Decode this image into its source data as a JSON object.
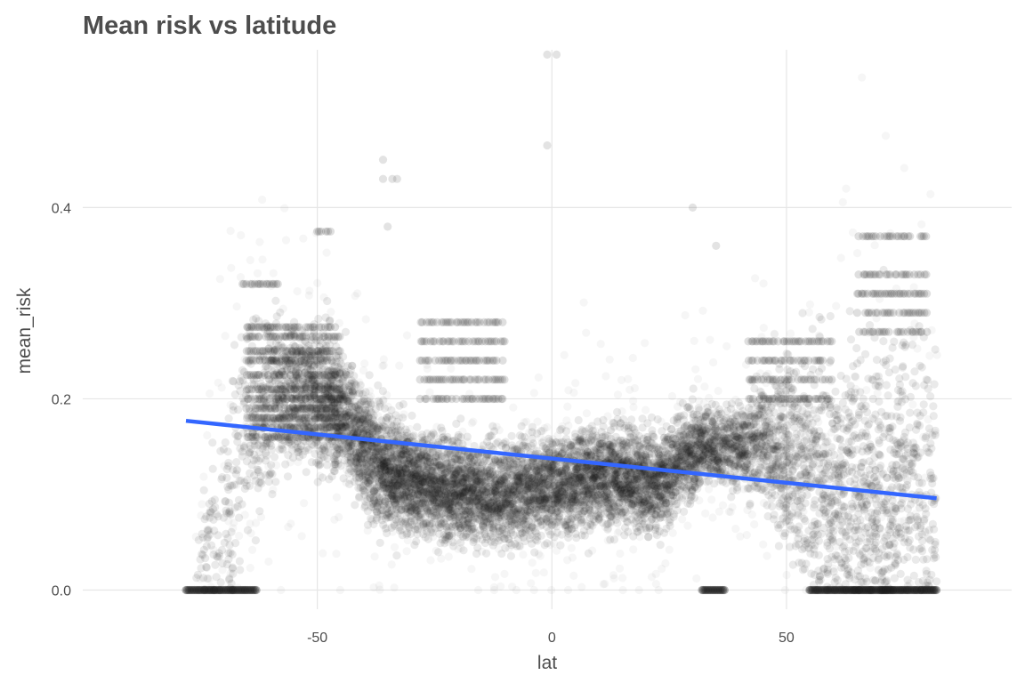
{
  "chart_data": {
    "type": "scatter",
    "title": "Mean risk vs latitude",
    "xlabel": "lat",
    "ylabel": "mean_risk",
    "xlim": [
      -100,
      98
    ],
    "ylim": [
      -0.02,
      0.565
    ],
    "xticks": [
      -50,
      0,
      50
    ],
    "xtick_labels": [
      "-50",
      "0",
      "50"
    ],
    "yticks": [
      0.0,
      0.2,
      0.4
    ],
    "ytick_labels": [
      "0.0",
      "0.2",
      "0.4"
    ],
    "grid": true,
    "legend": "none",
    "colors": {
      "points": "#1a1a1a",
      "trend": "#3366ff",
      "grid": "#e6e6e6",
      "text": "#4d4d4d"
    },
    "trend_line": {
      "type": "linear",
      "x": [
        -78,
        82
      ],
      "y": [
        0.177,
        0.096
      ]
    },
    "density_profile": {
      "lat": [
        -78,
        -72,
        -68,
        -65,
        -62,
        -58,
        -55,
        -52,
        -48,
        -45,
        -42,
        -38,
        -35,
        -30,
        -25,
        -20,
        -15,
        -10,
        -5,
        0,
        5,
        10,
        15,
        20,
        25,
        28,
        32,
        36,
        40,
        45,
        50,
        55,
        60,
        65,
        70,
        75,
        80
      ],
      "center": [
        0.0,
        0.05,
        0.1,
        0.17,
        0.19,
        0.2,
        0.21,
        0.205,
        0.2,
        0.185,
        0.165,
        0.135,
        0.125,
        0.115,
        0.11,
        0.105,
        0.1,
        0.1,
        0.105,
        0.11,
        0.115,
        0.12,
        0.12,
        0.11,
        0.12,
        0.14,
        0.15,
        0.15,
        0.15,
        0.16,
        0.14,
        0.12,
        0.1,
        0.1,
        0.1,
        0.1,
        0.1
      ],
      "spread": [
        0.0,
        0.05,
        0.07,
        0.06,
        0.05,
        0.04,
        0.035,
        0.035,
        0.035,
        0.03,
        0.03,
        0.03,
        0.03,
        0.025,
        0.025,
        0.025,
        0.025,
        0.025,
        0.025,
        0.025,
        0.025,
        0.025,
        0.025,
        0.025,
        0.025,
        0.025,
        0.02,
        0.02,
        0.02,
        0.03,
        0.05,
        0.06,
        0.07,
        0.08,
        0.08,
        0.08,
        0.08
      ],
      "weight": [
        0.0,
        0.4,
        0.9,
        1.0,
        1.6,
        2.2,
        2.6,
        3.0,
        3.4,
        3.6,
        3.8,
        4.2,
        4.4,
        4.4,
        4.2,
        4.0,
        3.8,
        3.8,
        3.8,
        3.8,
        3.6,
        3.6,
        3.6,
        3.6,
        3.4,
        3.2,
        3.0,
        2.4,
        2.2,
        2.4,
        2.2,
        1.6,
        1.6,
        1.8,
        1.8,
        1.6,
        1.4
      ]
    },
    "horizontal_bands": [
      {
        "lat_range": [
          -65,
          -45
        ],
        "values": [
          0.16,
          0.17,
          0.18,
          0.19,
          0.2,
          0.21,
          0.225,
          0.24,
          0.25,
          0.265,
          0.275
        ]
      },
      {
        "lat_range": [
          -66,
          -58
        ],
        "values": [
          0.32
        ]
      },
      {
        "lat_range": [
          -50,
          -47
        ],
        "values": [
          0.375
        ]
      },
      {
        "lat_range": [
          -28,
          -10
        ],
        "values": [
          0.2,
          0.22,
          0.24,
          0.26,
          0.28
        ]
      },
      {
        "lat_range": [
          42,
          60
        ],
        "values": [
          0.2,
          0.22,
          0.24,
          0.26
        ]
      },
      {
        "lat_range": [
          65,
          80
        ],
        "values": [
          0.27,
          0.29,
          0.31,
          0.33,
          0.37
        ]
      }
    ],
    "zero_clusters": [
      {
        "lat_range": [
          -78,
          -63
        ]
      },
      {
        "lat_range": [
          32,
          37
        ]
      },
      {
        "lat_range": [
          55,
          82
        ]
      }
    ],
    "outliers": [
      {
        "x": -1,
        "y": 0.56
      },
      {
        "x": 1,
        "y": 0.56
      },
      {
        "x": -1,
        "y": 0.465
      },
      {
        "x": -36,
        "y": 0.45
      },
      {
        "x": -36,
        "y": 0.43
      },
      {
        "x": -34,
        "y": 0.43
      },
      {
        "x": -33,
        "y": 0.43
      },
      {
        "x": 30,
        "y": 0.4
      },
      {
        "x": -35,
        "y": 0.38
      },
      {
        "x": 35,
        "y": 0.36
      }
    ]
  }
}
